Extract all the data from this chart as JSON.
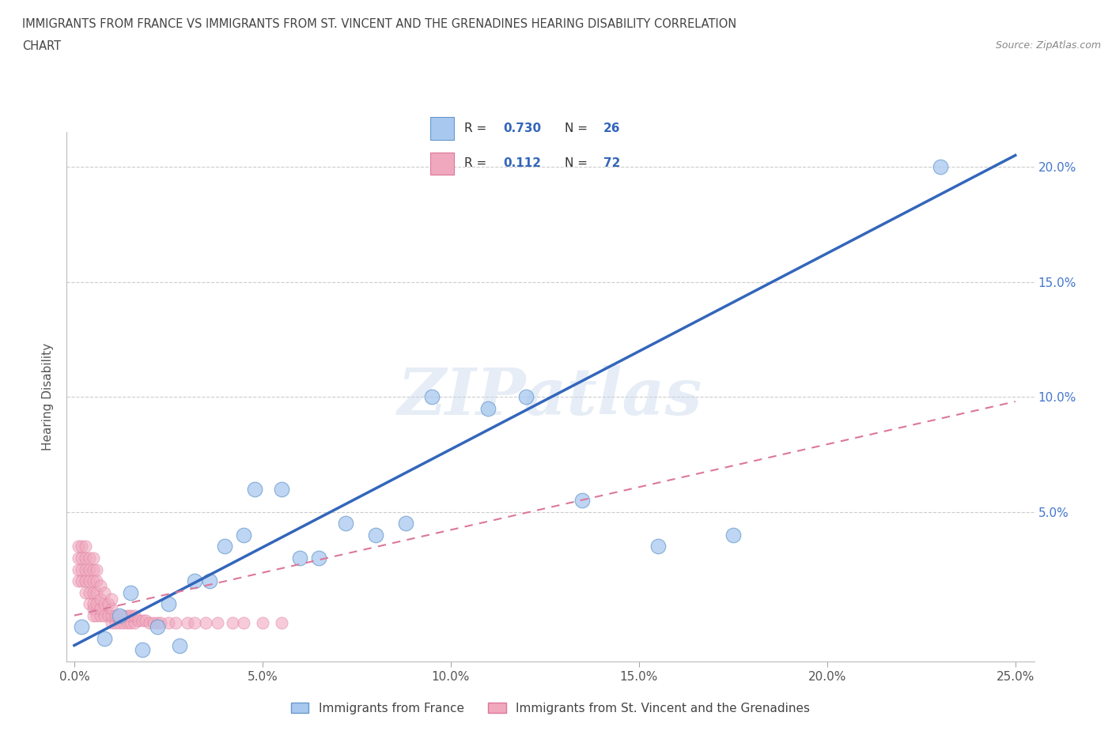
{
  "title_line1": "IMMIGRANTS FROM FRANCE VS IMMIGRANTS FROM ST. VINCENT AND THE GRENADINES HEARING DISABILITY CORRELATION",
  "title_line2": "CHART",
  "source": "Source: ZipAtlas.com",
  "ylabel": "Hearing Disability",
  "xlim": [
    -0.002,
    0.255
  ],
  "ylim": [
    -0.015,
    0.215
  ],
  "xticks": [
    0.0,
    0.05,
    0.1,
    0.15,
    0.2,
    0.25
  ],
  "xticklabels": [
    "0.0%",
    "5.0%",
    "10.0%",
    "15.0%",
    "20.0%",
    "25.0%"
  ],
  "yticks_right": [
    0.05,
    0.1,
    0.15,
    0.2
  ],
  "yticklabels_right": [
    "5.0%",
    "10.0%",
    "15.0%",
    "20.0%"
  ],
  "france_color": "#a8c8f0",
  "france_edge": "#6699cc",
  "stvincent_color": "#f0a8be",
  "stvincent_edge": "#dd7799",
  "france_line_color": "#3366bb",
  "stvincent_line_color": "#dd7799",
  "legend_label_france": "Immigrants from France",
  "legend_label_stvincent": "Immigrants from St. Vincent and the Grenadines",
  "watermark_text": "ZIPatlas",
  "france_x": [
    0.002,
    0.008,
    0.012,
    0.015,
    0.018,
    0.022,
    0.025,
    0.028,
    0.032,
    0.036,
    0.04,
    0.045,
    0.048,
    0.055,
    0.06,
    0.065,
    0.072,
    0.08,
    0.088,
    0.095,
    0.11,
    0.12,
    0.135,
    0.155,
    0.175,
    0.23
  ],
  "france_y": [
    0.0,
    -0.005,
    0.005,
    0.015,
    -0.01,
    0.0,
    0.01,
    -0.008,
    0.02,
    0.02,
    0.035,
    0.04,
    0.06,
    0.06,
    0.03,
    0.03,
    0.045,
    0.04,
    0.045,
    0.1,
    0.095,
    0.1,
    0.055,
    0.035,
    0.04,
    0.2
  ],
  "stvincent_x": [
    0.001,
    0.001,
    0.001,
    0.001,
    0.002,
    0.002,
    0.002,
    0.002,
    0.003,
    0.003,
    0.003,
    0.003,
    0.003,
    0.004,
    0.004,
    0.004,
    0.004,
    0.004,
    0.005,
    0.005,
    0.005,
    0.005,
    0.005,
    0.005,
    0.005,
    0.006,
    0.006,
    0.006,
    0.006,
    0.006,
    0.007,
    0.007,
    0.007,
    0.007,
    0.008,
    0.008,
    0.008,
    0.009,
    0.009,
    0.01,
    0.01,
    0.01,
    0.01,
    0.011,
    0.011,
    0.012,
    0.012,
    0.013,
    0.013,
    0.014,
    0.014,
    0.015,
    0.015,
    0.016,
    0.016,
    0.017,
    0.018,
    0.019,
    0.02,
    0.021,
    0.022,
    0.023,
    0.025,
    0.027,
    0.03,
    0.032,
    0.035,
    0.038,
    0.042,
    0.045,
    0.05,
    0.055
  ],
  "stvincent_y": [
    0.02,
    0.025,
    0.03,
    0.035,
    0.02,
    0.025,
    0.03,
    0.035,
    0.015,
    0.02,
    0.025,
    0.03,
    0.035,
    0.01,
    0.015,
    0.02,
    0.025,
    0.03,
    0.005,
    0.008,
    0.01,
    0.015,
    0.02,
    0.025,
    0.03,
    0.005,
    0.01,
    0.015,
    0.02,
    0.025,
    0.005,
    0.008,
    0.012,
    0.018,
    0.005,
    0.01,
    0.015,
    0.005,
    0.01,
    0.002,
    0.005,
    0.008,
    0.012,
    0.002,
    0.005,
    0.002,
    0.005,
    0.002,
    0.005,
    0.002,
    0.005,
    0.002,
    0.005,
    0.002,
    0.005,
    0.003,
    0.003,
    0.003,
    0.002,
    0.002,
    0.002,
    0.002,
    0.002,
    0.002,
    0.002,
    0.002,
    0.002,
    0.002,
    0.002,
    0.002,
    0.002,
    0.002
  ],
  "france_trend_x0": 0.0,
  "france_trend_y0": -0.008,
  "france_trend_x1": 0.25,
  "france_trend_y1": 0.205,
  "sv_trend_x0": 0.0,
  "sv_trend_y0": 0.005,
  "sv_trend_x1": 0.25,
  "sv_trend_y1": 0.098
}
